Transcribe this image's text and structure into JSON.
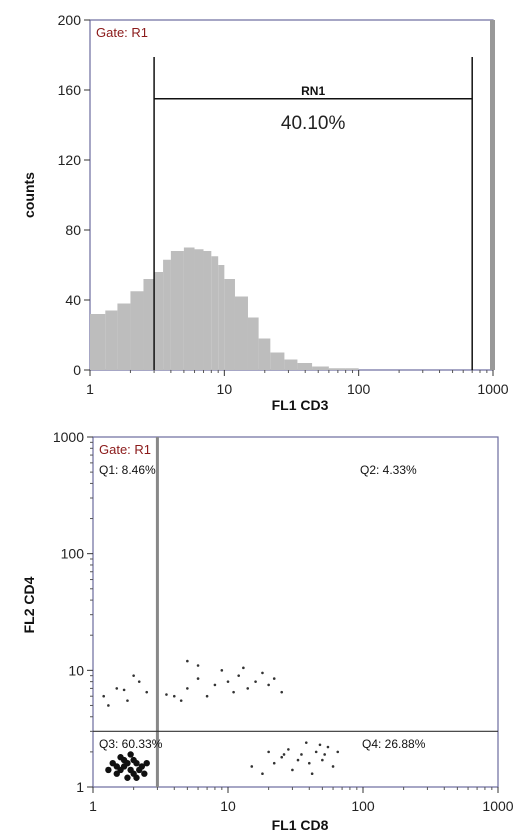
{
  "chart_data": [
    {
      "type": "bar",
      "chart_style": "histogram",
      "gate_label": "Gate: R1",
      "xlabel": "FL1 CD3",
      "ylabel": "counts",
      "x_scale": "log",
      "xlim": [
        1,
        1000
      ],
      "ylim": [
        0,
        200
      ],
      "x_ticks": [
        "1",
        "10",
        "100",
        "1000"
      ],
      "y_ticks": [
        "0",
        "40",
        "80",
        "120",
        "160",
        "200"
      ],
      "bar_color": "#bdbdbd",
      "region": {
        "label": "RN1",
        "percent": "40.10%",
        "x_start": 3,
        "x_end": 700,
        "y_level": 155
      },
      "histogram": {
        "x": [
          1.0,
          1.3,
          1.6,
          2.0,
          2.5,
          3.0,
          3.5,
          4.0,
          5.0,
          6.0,
          7.0,
          8.0,
          9.0,
          10.0,
          12.0,
          15.0,
          18.0,
          22.0,
          28.0,
          35.0,
          45.0,
          60.0,
          80.0,
          100.0,
          150.0,
          200.0,
          300.0,
          500.0,
          700.0,
          1000.0
        ],
        "counts": [
          32,
          34,
          38,
          45,
          52,
          56,
          63,
          68,
          70,
          69,
          68,
          65,
          60,
          52,
          42,
          30,
          18,
          10,
          6,
          4,
          2,
          1,
          1,
          0,
          0,
          0,
          0,
          0,
          0,
          0
        ]
      }
    },
    {
      "type": "scatter",
      "gate_label": "Gate: R1",
      "xlabel": "FL1 CD8",
      "ylabel": "FL2 CD4",
      "x_scale": "log",
      "y_scale": "log",
      "xlim": [
        1,
        1000
      ],
      "ylim": [
        1,
        1000
      ],
      "x_ticks": [
        "1",
        "10",
        "100",
        "1000"
      ],
      "y_ticks": [
        "1",
        "10",
        "100",
        "1000"
      ],
      "quadrant_x": 3,
      "quadrant_y": 3,
      "quadrants": [
        {
          "name": "Q1",
          "label": "Q1: 8.46%"
        },
        {
          "name": "Q2",
          "label": "Q2: 4.33%"
        },
        {
          "name": "Q3",
          "label": "Q3: 60.33%"
        },
        {
          "name": "Q4",
          "label": "Q4: 26.88%"
        }
      ],
      "points_q3_cluster": [
        [
          1.5,
          1.3
        ],
        [
          1.7,
          1.5
        ],
        [
          1.9,
          1.4
        ],
        [
          2.1,
          1.6
        ],
        [
          1.6,
          1.8
        ],
        [
          1.8,
          1.2
        ],
        [
          2.0,
          1.3
        ],
        [
          2.3,
          1.5
        ],
        [
          1.4,
          1.6
        ],
        [
          1.7,
          1.7
        ],
        [
          1.9,
          1.9
        ],
        [
          2.2,
          1.4
        ],
        [
          1.5,
          1.5
        ],
        [
          2.4,
          1.3
        ],
        [
          1.6,
          1.4
        ],
        [
          2.0,
          1.7
        ],
        [
          1.8,
          1.6
        ],
        [
          2.1,
          1.2
        ],
        [
          1.3,
          1.4
        ],
        [
          2.5,
          1.6
        ]
      ],
      "points_q4": [
        [
          15,
          1.5
        ],
        [
          18,
          1.3
        ],
        [
          22,
          1.6
        ],
        [
          25,
          1.8
        ],
        [
          30,
          1.4
        ],
        [
          35,
          1.9
        ],
        [
          40,
          1.6
        ],
        [
          45,
          2.0
        ],
        [
          50,
          1.7
        ],
        [
          55,
          2.2
        ],
        [
          60,
          1.5
        ],
        [
          28,
          2.1
        ],
        [
          33,
          1.7
        ],
        [
          42,
          1.3
        ],
        [
          20,
          2.0
        ],
        [
          48,
          2.3
        ],
        [
          38,
          2.4
        ],
        [
          26,
          1.9
        ],
        [
          52,
          1.9
        ],
        [
          65,
          2.0
        ]
      ],
      "points_q1": [
        [
          1.2,
          6
        ],
        [
          1.5,
          7
        ],
        [
          1.8,
          5.5
        ],
        [
          2.2,
          8
        ],
        [
          2.5,
          6.5
        ],
        [
          1.3,
          5
        ],
        [
          2.0,
          9
        ],
        [
          1.7,
          6.8
        ]
      ],
      "points_q2_edge": [
        [
          4,
          6
        ],
        [
          5,
          7
        ],
        [
          6,
          8.5
        ],
        [
          7,
          6
        ],
        [
          8,
          7.5
        ],
        [
          10,
          8
        ],
        [
          12,
          9
        ],
        [
          14,
          7
        ],
        [
          16,
          8
        ],
        [
          18,
          9.5
        ],
        [
          20,
          7.5
        ],
        [
          22,
          8.5
        ],
        [
          25,
          6.5
        ],
        [
          4.5,
          5.5
        ],
        [
          9,
          10
        ],
        [
          11,
          6.5
        ],
        [
          13,
          10.5
        ],
        [
          6,
          11
        ],
        [
          5,
          12
        ],
        [
          3.5,
          6.2
        ]
      ]
    }
  ]
}
